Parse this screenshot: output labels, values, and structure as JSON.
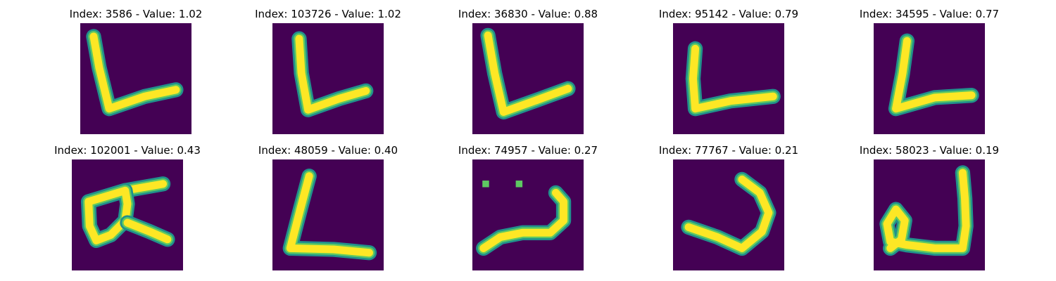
{
  "colors": {
    "background": "#440154",
    "stroke_core": "#fde725",
    "stroke_mid": "#5ec962",
    "stroke_edge": "#21918c"
  },
  "panels": [
    {
      "title": "Index: 3586 - Value: 1.02",
      "depicts": "letter-L-glyph",
      "strokes": [
        [
          [
            0.12,
            0.12
          ],
          [
            0.17,
            0.4
          ],
          [
            0.26,
            0.77
          ],
          [
            0.58,
            0.66
          ],
          [
            0.86,
            0.6
          ]
        ]
      ]
    },
    {
      "title": "Index: 103726 - Value: 1.02",
      "depicts": "letter-L-glyph",
      "strokes": [
        [
          [
            0.24,
            0.14
          ],
          [
            0.26,
            0.45
          ],
          [
            0.32,
            0.78
          ],
          [
            0.6,
            0.68
          ],
          [
            0.84,
            0.61
          ]
        ]
      ]
    },
    {
      "title": "Index: 36830 - Value: 0.88",
      "depicts": "letter-L-glyph",
      "strokes": [
        [
          [
            0.14,
            0.11
          ],
          [
            0.2,
            0.45
          ],
          [
            0.28,
            0.8
          ],
          [
            0.56,
            0.7
          ],
          [
            0.86,
            0.59
          ]
        ]
      ]
    },
    {
      "title": "Index: 95142 - Value: 0.79",
      "depicts": "letter-L-glyph",
      "strokes": [
        [
          [
            0.2,
            0.23
          ],
          [
            0.18,
            0.5
          ],
          [
            0.2,
            0.77
          ],
          [
            0.52,
            0.7
          ],
          [
            0.9,
            0.66
          ]
        ]
      ]
    },
    {
      "title": "Index: 34595 - Value: 0.77",
      "depicts": "letter-L-glyph",
      "strokes": [
        [
          [
            0.3,
            0.16
          ],
          [
            0.26,
            0.45
          ],
          [
            0.2,
            0.77
          ],
          [
            0.55,
            0.67
          ],
          [
            0.88,
            0.65
          ]
        ]
      ]
    },
    {
      "title": "Index: 102001 - Value: 0.43",
      "depicts": "letter-K-like-glyph",
      "strokes": [
        [
          [
            0.15,
            0.38
          ],
          [
            0.48,
            0.28
          ],
          [
            0.82,
            0.22
          ]
        ],
        [
          [
            0.15,
            0.38
          ],
          [
            0.16,
            0.6
          ],
          [
            0.22,
            0.73
          ],
          [
            0.35,
            0.68
          ],
          [
            0.48,
            0.55
          ],
          [
            0.5,
            0.4
          ],
          [
            0.48,
            0.28
          ],
          [
            0.25,
            0.35
          ],
          [
            0.15,
            0.38
          ]
        ],
        [
          [
            0.5,
            0.57
          ],
          [
            0.7,
            0.65
          ],
          [
            0.86,
            0.72
          ]
        ]
      ]
    },
    {
      "title": "Index: 48059 - Value: 0.40",
      "depicts": "letter-L-glyph",
      "strokes": [
        [
          [
            0.33,
            0.15
          ],
          [
            0.25,
            0.45
          ],
          [
            0.16,
            0.8
          ],
          [
            0.55,
            0.81
          ],
          [
            0.87,
            0.84
          ]
        ]
      ]
    },
    {
      "title": "Index: 74957 - Value: 0.27",
      "depicts": "wavy-hook-glyph",
      "strokes": [
        [
          [
            0.1,
            0.8
          ],
          [
            0.25,
            0.7
          ],
          [
            0.45,
            0.66
          ],
          [
            0.7,
            0.66
          ],
          [
            0.82,
            0.55
          ],
          [
            0.82,
            0.38
          ],
          [
            0.75,
            0.3
          ]
        ]
      ],
      "dots": [
        [
          0.12,
          0.22
        ],
        [
          0.42,
          0.22
        ]
      ]
    },
    {
      "title": "Index: 77767 - Value: 0.21",
      "depicts": "letter-J-glyph",
      "strokes": [
        [
          [
            0.14,
            0.61
          ],
          [
            0.4,
            0.7
          ],
          [
            0.62,
            0.8
          ],
          [
            0.8,
            0.65
          ],
          [
            0.86,
            0.48
          ],
          [
            0.78,
            0.3
          ],
          [
            0.62,
            0.18
          ]
        ]
      ]
    },
    {
      "title": "Index: 58023 - Value: 0.19",
      "depicts": "looped-J-glyph",
      "strokes": [
        [
          [
            0.8,
            0.12
          ],
          [
            0.82,
            0.35
          ],
          [
            0.83,
            0.6
          ],
          [
            0.8,
            0.8
          ],
          [
            0.55,
            0.8
          ],
          [
            0.3,
            0.77
          ],
          [
            0.15,
            0.74
          ],
          [
            0.12,
            0.58
          ],
          [
            0.2,
            0.45
          ],
          [
            0.28,
            0.55
          ],
          [
            0.25,
            0.72
          ],
          [
            0.15,
            0.8
          ]
        ]
      ]
    }
  ]
}
